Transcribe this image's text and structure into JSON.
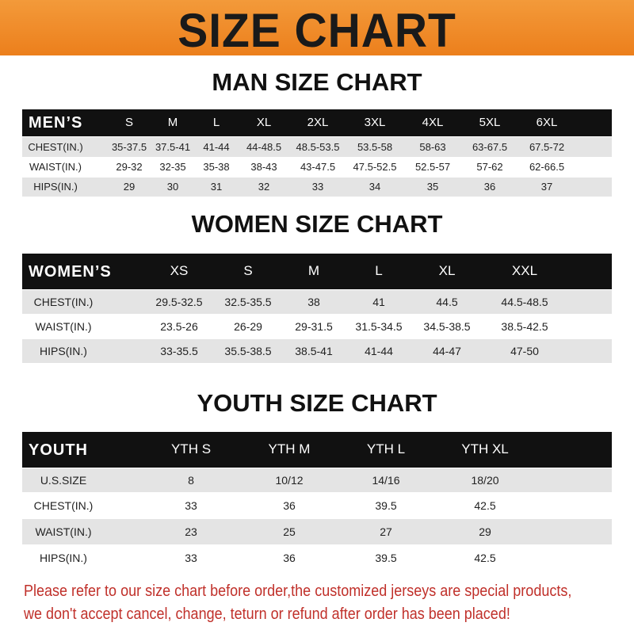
{
  "banner_title": "SIZE CHART",
  "colors": {
    "banner": "#ee8524",
    "header_row": "#111111",
    "shaded_row": "#e4e4e4",
    "note": "#c0302a"
  },
  "men": {
    "title": "MAN SIZE CHART",
    "corner": "MEN’S",
    "sizes": [
      "S",
      "M",
      "L",
      "XL",
      "2XL",
      "3XL",
      "4XL",
      "5XL",
      "6XL"
    ],
    "rows": [
      {
        "label": "CHEST(IN.)",
        "values": [
          "35-37.5",
          "37.5-41",
          "41-44",
          "44-48.5",
          "48.5-53.5",
          "53.5-58",
          "58-63",
          "63-67.5",
          "67.5-72"
        ]
      },
      {
        "label": "WAIST(IN.)",
        "values": [
          "29-32",
          "32-35",
          "35-38",
          "38-43",
          "43-47.5",
          "47.5-52.5",
          "52.5-57",
          "57-62",
          "62-66.5"
        ]
      },
      {
        "label": "HIPS(IN.)",
        "values": [
          "29",
          "30",
          "31",
          "32",
          "33",
          "34",
          "35",
          "36",
          "37"
        ]
      }
    ]
  },
  "women": {
    "title": "WOMEN SIZE CHART",
    "corner": "WOMEN’S",
    "sizes": [
      "XS",
      "S",
      "M",
      "L",
      "XL",
      "XXL"
    ],
    "rows": [
      {
        "label": "CHEST(IN.)",
        "values": [
          "29.5-32.5",
          "32.5-35.5",
          "38",
          "41",
          "44.5",
          "44.5-48.5"
        ]
      },
      {
        "label": "WAIST(IN.)",
        "values": [
          "23.5-26",
          "26-29",
          "29-31.5",
          "31.5-34.5",
          "34.5-38.5",
          "38.5-42.5"
        ]
      },
      {
        "label": "HIPS(IN.)",
        "values": [
          "33-35.5",
          "35.5-38.5",
          "38.5-41",
          "41-44",
          "44-47",
          "47-50"
        ]
      }
    ]
  },
  "youth": {
    "title": "YOUTH SIZE CHART",
    "corner": "YOUTH",
    "sizes": [
      "YTH S",
      "YTH M",
      "YTH L",
      "YTH XL"
    ],
    "rows": [
      {
        "label": "U.S.SIZE",
        "values": [
          "8",
          "10/12",
          "14/16",
          "18/20"
        ]
      },
      {
        "label": "CHEST(IN.)",
        "values": [
          "33",
          "36",
          "39.5",
          "42.5"
        ]
      },
      {
        "label": "WAIST(IN.)",
        "values": [
          "23",
          "25",
          "27",
          "29"
        ]
      },
      {
        "label": "HIPS(IN.)",
        "values": [
          "33",
          "36",
          "39.5",
          "42.5"
        ]
      }
    ]
  },
  "note": {
    "line1": "Please refer to our size chart before order,the customized jerseys are special products,",
    "line2": "we don't accept cancel, change, teturn or refund after order has been placed!"
  }
}
